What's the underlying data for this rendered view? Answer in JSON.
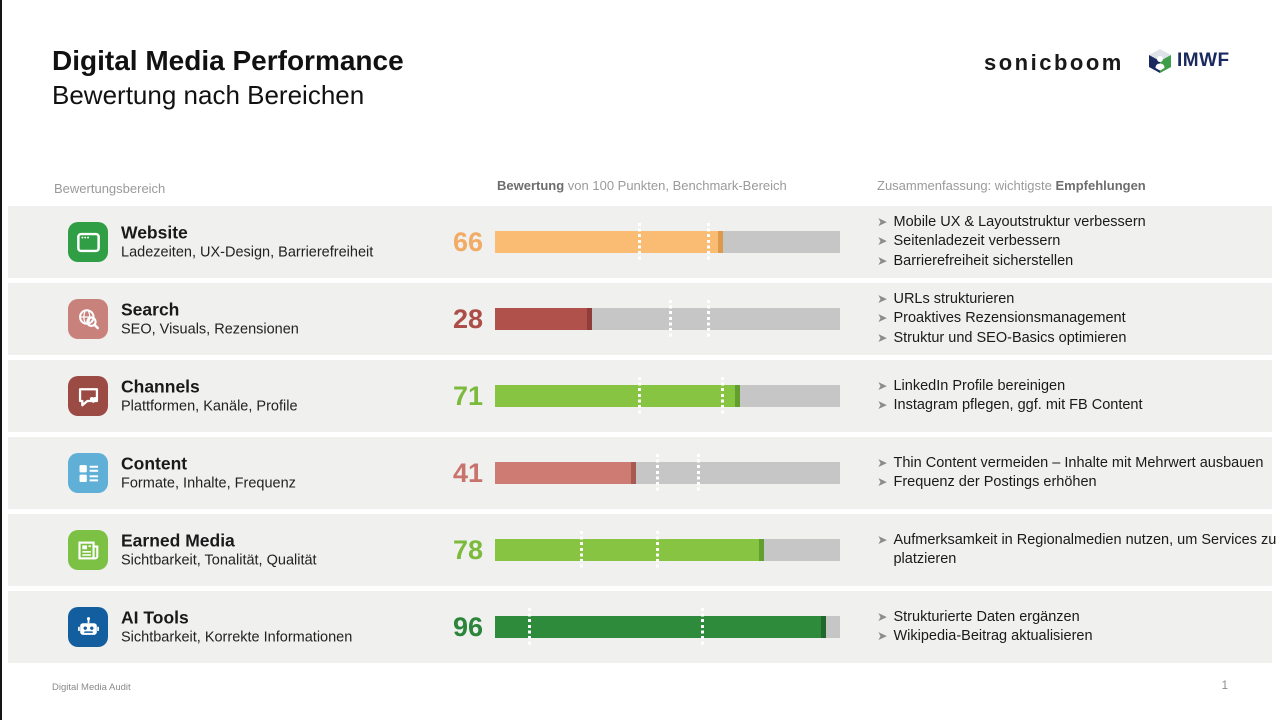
{
  "header": {
    "title": "Digital Media Performance",
    "subtitle": "Bewertung nach Bereichen",
    "logo_sonicboom": "sonicboom",
    "logo_imwf": "IMWF"
  },
  "columns": {
    "area": "Bewertungsbereich",
    "score_bold": "Bewertung",
    "score_rest": " von 100 Punkten, Benchmark-Bereich",
    "summary_prefix": "Zusammenfassung: wichtigste ",
    "summary_bold": "Empfehlungen"
  },
  "bullet": "➤",
  "chart_data": {
    "type": "bar",
    "title": "Bewertung von 100 Punkten, Benchmark-Bereich",
    "categories": [
      "Website",
      "Search",
      "Channels",
      "Content",
      "Earned Media",
      "AI Tools"
    ],
    "values": [
      66,
      28,
      71,
      41,
      78,
      96
    ],
    "benchmark_ranges": [
      [
        42,
        62
      ],
      [
        51,
        62
      ],
      [
        42,
        66
      ],
      [
        47,
        59
      ],
      [
        25,
        47
      ],
      [
        10,
        60
      ]
    ],
    "xlim": [
      0,
      100
    ],
    "grid": false,
    "legend": false
  },
  "rows": [
    {
      "title": "Website",
      "subtitle": "Ladezeiten, UX-Design, Barrierefreiheit",
      "icon": "browser-icon",
      "icon_color": "#2f9e44",
      "score": 66,
      "benchmark_low": 42,
      "benchmark_high": 62,
      "bar_color": "#f9bc72",
      "cap_color": "#dd9a4c",
      "score_color": "#f2ab64",
      "recommendations": [
        "Mobile UX & Layoutstruktur verbessern",
        "Seitenladezeit verbessern",
        "Barrierefreiheit sicherstellen"
      ]
    },
    {
      "title": "Search",
      "subtitle": "SEO, Visuals, Rezensionen",
      "icon": "globe-search-icon",
      "icon_color": "#c9817b",
      "score": 28,
      "benchmark_low": 51,
      "benchmark_high": 62,
      "bar_color": "#b1514b",
      "cap_color": "#8f3d38",
      "score_color": "#ac4d47",
      "recommendations": [
        "URLs strukturieren",
        "Proaktives Rezensionsmanagement",
        "Struktur und SEO-Basics optimieren"
      ]
    },
    {
      "title": "Channels",
      "subtitle": "Plattformen, Kanäle, Profile",
      "icon": "chat-heart-icon",
      "icon_color": "#9c4b44",
      "score": 71,
      "benchmark_low": 42,
      "benchmark_high": 66,
      "bar_color": "#86c441",
      "cap_color": "#619f2e",
      "score_color": "#7cba3e",
      "recommendations": [
        "LinkedIn Profile bereinigen",
        "Instagram pflegen, ggf. mit FB Content"
      ]
    },
    {
      "title": "Content",
      "subtitle": "Formate, Inhalte, Frequenz",
      "icon": "layout-icon",
      "icon_color": "#5fafd7",
      "score": 41,
      "benchmark_low": 47,
      "benchmark_high": 59,
      "bar_color": "#cd7b73",
      "cap_color": "#a75a52",
      "score_color": "#c8736b",
      "recommendations": [
        "Thin Content vermeiden – Inhalte mit Mehrwert ausbauen",
        "Frequenz der Postings erhöhen"
      ]
    },
    {
      "title": "Earned Media",
      "subtitle": "Sichtbarkeit, Tonalität, Qualität",
      "icon": "newspaper-icon",
      "icon_color": "#7cc143",
      "score": 78,
      "benchmark_low": 25,
      "benchmark_high": 47,
      "bar_color": "#86c441",
      "cap_color": "#619f2e",
      "score_color": "#7cba3e",
      "recommendations": [
        "Aufmerksamkeit in Regionalmedien nutzen, um Services zu platzieren"
      ]
    },
    {
      "title": "AI Tools",
      "subtitle": "Sichtbarkeit, Korrekte Informationen",
      "icon": "robot-icon",
      "icon_color": "#135e9e",
      "score": 96,
      "benchmark_low": 10,
      "benchmark_high": 60,
      "bar_color": "#2e8b3c",
      "cap_color": "#20682c",
      "score_color": "#2b853a",
      "recommendations": [
        "Strukturierte Daten ergänzen",
        "Wikipedia-Beitrag aktualisieren"
      ]
    }
  ],
  "footer": {
    "left": "Digital Media Audit",
    "page": "1"
  }
}
